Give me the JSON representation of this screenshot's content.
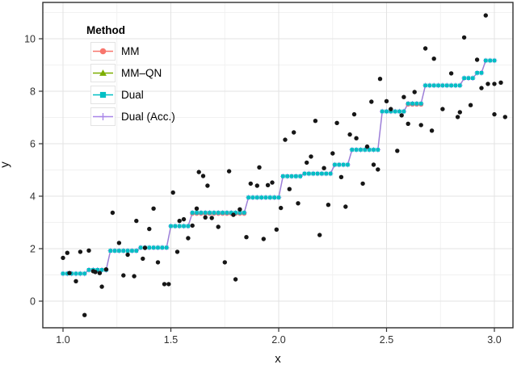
{
  "chart_data": {
    "type": "scatter",
    "title": "",
    "xlabel": "x",
    "ylabel": "y",
    "xlim": [
      0.906,
      3.086
    ],
    "ylim": [
      -1.02,
      11.38
    ],
    "x_ticks": [
      1.0,
      1.5,
      2.0,
      2.5,
      3.0
    ],
    "x_tick_labels": [
      "1.0",
      "1.5",
      "2.0",
      "2.5",
      "3.0"
    ],
    "y_ticks": [
      0,
      2,
      4,
      6,
      8,
      10
    ],
    "y_tick_labels": [
      "0",
      "2",
      "4",
      "6",
      "8",
      "10"
    ],
    "x_minor_gridlines": [
      1.25,
      1.75,
      2.25,
      2.75
    ],
    "y_minor_gridlines": [
      -1,
      1,
      3,
      5,
      7,
      9,
      11
    ],
    "grid": "on",
    "legend": {
      "title": "Method",
      "position": "top-left-inside",
      "entries": [
        {
          "label": "MM",
          "color": "#F8766D",
          "marker": "circle"
        },
        {
          "label": "MM–QN",
          "color": "#7CAE00",
          "marker": "triangle"
        },
        {
          "label": "Dual",
          "color": "#00BFC4",
          "marker": "square"
        },
        {
          "label": "Dual (Acc.)",
          "color": "#A885E8",
          "marker": "plus"
        }
      ]
    },
    "colors": {
      "scatter": "#161616",
      "step_line": "#9D7FD8",
      "panel_border": "#2f2f2f",
      "grid_major": "#e3e3e3",
      "grid_minor": "#f1f1f1",
      "tick_text": "#303030"
    },
    "step_fit": {
      "description": "Isotonic step-function fit; all four methods (MM, MM-QN, Dual, Dual (Acc.)) coincide on the same staircase",
      "marker_spacing_x": 0.02,
      "segments_x_start_x_end_y": [
        [
          1.0,
          1.1,
          1.05
        ],
        [
          1.105,
          1.21,
          1.19
        ],
        [
          1.215,
          1.35,
          1.92
        ],
        [
          1.355,
          1.49,
          2.04
        ],
        [
          1.495,
          1.59,
          2.86
        ],
        [
          1.595,
          1.855,
          3.37
        ],
        [
          1.86,
          2.015,
          3.95
        ],
        [
          2.02,
          2.105,
          4.76
        ],
        [
          2.11,
          2.245,
          4.86
        ],
        [
          2.25,
          2.325,
          5.2
        ],
        [
          2.33,
          2.465,
          5.77
        ],
        [
          2.47,
          2.585,
          7.23
        ],
        [
          2.59,
          2.665,
          7.53
        ],
        [
          2.67,
          2.85,
          8.22
        ],
        [
          2.855,
          2.915,
          8.5
        ],
        [
          2.92,
          2.955,
          8.7
        ],
        [
          2.96,
          3.005,
          9.17
        ]
      ]
    },
    "scatter_points": [
      [
        1.0,
        1.65
      ],
      [
        1.02,
        1.84
      ],
      [
        1.03,
        1.07
      ],
      [
        1.06,
        0.76
      ],
      [
        1.08,
        1.88
      ],
      [
        1.1,
        -0.53
      ],
      [
        1.12,
        1.93
      ],
      [
        1.14,
        1.14
      ],
      [
        1.15,
        1.11
      ],
      [
        1.17,
        1.07
      ],
      [
        1.18,
        0.55
      ],
      [
        1.2,
        1.21
      ],
      [
        1.23,
        3.37
      ],
      [
        1.26,
        2.22
      ],
      [
        1.28,
        0.98
      ],
      [
        1.3,
        1.77
      ],
      [
        1.33,
        0.95
      ],
      [
        1.34,
        3.06
      ],
      [
        1.37,
        1.62
      ],
      [
        1.38,
        2.03
      ],
      [
        1.4,
        2.75
      ],
      [
        1.42,
        3.53
      ],
      [
        1.44,
        1.48
      ],
      [
        1.47,
        0.65
      ],
      [
        1.49,
        0.65
      ],
      [
        1.51,
        4.14
      ],
      [
        1.53,
        1.88
      ],
      [
        1.54,
        3.06
      ],
      [
        1.56,
        3.12
      ],
      [
        1.58,
        2.4
      ],
      [
        1.6,
        2.88
      ],
      [
        1.62,
        3.53
      ],
      [
        1.63,
        4.92
      ],
      [
        1.65,
        4.77
      ],
      [
        1.66,
        3.19
      ],
      [
        1.67,
        4.4
      ],
      [
        1.69,
        3.17
      ],
      [
        1.72,
        2.83
      ],
      [
        1.75,
        1.48
      ],
      [
        1.77,
        4.95
      ],
      [
        1.79,
        3.29
      ],
      [
        1.8,
        0.83
      ],
      [
        1.82,
        3.5
      ],
      [
        1.85,
        2.44
      ],
      [
        1.87,
        4.48
      ],
      [
        1.9,
        4.4
      ],
      [
        1.91,
        5.1
      ],
      [
        1.93,
        2.37
      ],
      [
        1.95,
        4.42
      ],
      [
        1.97,
        4.52
      ],
      [
        1.99,
        2.73
      ],
      [
        2.01,
        3.55
      ],
      [
        2.03,
        6.15
      ],
      [
        2.05,
        4.27
      ],
      [
        2.07,
        6.43
      ],
      [
        2.09,
        3.73
      ],
      [
        2.13,
        5.28
      ],
      [
        2.15,
        5.51
      ],
      [
        2.17,
        6.87
      ],
      [
        2.19,
        2.52
      ],
      [
        2.21,
        5.07
      ],
      [
        2.23,
        3.67
      ],
      [
        2.25,
        5.63
      ],
      [
        2.27,
        6.79
      ],
      [
        2.29,
        4.73
      ],
      [
        2.31,
        3.6
      ],
      [
        2.33,
        6.35
      ],
      [
        2.35,
        7.12
      ],
      [
        2.36,
        6.21
      ],
      [
        2.39,
        4.48
      ],
      [
        2.41,
        5.89
      ],
      [
        2.43,
        7.6
      ],
      [
        2.44,
        5.2
      ],
      [
        2.46,
        5.02
      ],
      [
        2.47,
        8.47
      ],
      [
        2.5,
        7.62
      ],
      [
        2.52,
        7.32
      ],
      [
        2.55,
        5.73
      ],
      [
        2.57,
        7.08
      ],
      [
        2.58,
        7.78
      ],
      [
        2.6,
        6.76
      ],
      [
        2.63,
        7.97
      ],
      [
        2.66,
        6.71
      ],
      [
        2.68,
        9.63
      ],
      [
        2.71,
        6.5
      ],
      [
        2.72,
        9.24
      ],
      [
        2.76,
        7.32
      ],
      [
        2.8,
        8.68
      ],
      [
        2.83,
        7.02
      ],
      [
        2.84,
        7.2
      ],
      [
        2.86,
        10.05
      ],
      [
        2.89,
        7.47
      ],
      [
        2.92,
        9.2
      ],
      [
        2.94,
        8.12
      ],
      [
        2.96,
        10.89
      ],
      [
        2.97,
        8.28
      ],
      [
        3.0,
        8.28
      ],
      [
        3.0,
        7.12
      ],
      [
        3.03,
        8.33
      ],
      [
        3.05,
        7.02
      ]
    ]
  }
}
